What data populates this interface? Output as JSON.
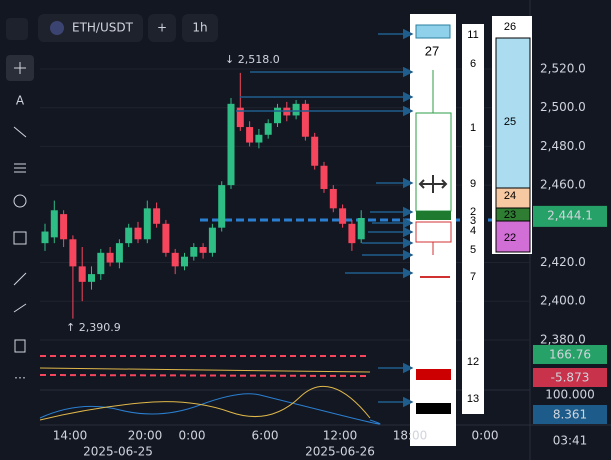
{
  "toolbar": {
    "symbol": "ETH/USDT",
    "add": "+",
    "interval": "1h"
  },
  "tools": {
    "text": "A"
  },
  "price_axis": {
    "ticks": [
      {
        "value": 2520,
        "label": "2,520.0"
      },
      {
        "value": 2500,
        "label": "2,500.0"
      },
      {
        "value": 2480,
        "label": "2,480.0"
      },
      {
        "value": 2460,
        "label": "2,460.0"
      },
      {
        "value": 2420,
        "label": "2,420.0"
      },
      {
        "value": 2400,
        "label": "2,400.0"
      },
      {
        "value": 2380,
        "label": "2,380.0"
      }
    ],
    "current": {
      "value": 2444.1,
      "label": "2,444.1"
    }
  },
  "high_label": "↓ 2,518.0",
  "low_label": "↑ 2,390.9",
  "candles": [
    [
      2430,
      2440,
      2426,
      2436
    ],
    [
      2433,
      2452,
      2430,
      2447
    ],
    [
      2445,
      2447,
      2428,
      2432
    ],
    [
      2432,
      2434,
      2391,
      2418
    ],
    [
      2418,
      2428,
      2400,
      2410
    ],
    [
      2410,
      2418,
      2406,
      2414
    ],
    [
      2414,
      2427,
      2411,
      2425
    ],
    [
      2425,
      2428,
      2418,
      2420
    ],
    [
      2420,
      2432,
      2417,
      2430
    ],
    [
      2430,
      2440,
      2428,
      2438
    ],
    [
      2438,
      2441,
      2430,
      2432
    ],
    [
      2432,
      2452,
      2430,
      2448
    ],
    [
      2448,
      2451,
      2438,
      2440
    ],
    [
      2440,
      2442,
      2423,
      2425
    ],
    [
      2425,
      2427,
      2414,
      2418
    ],
    [
      2418,
      2425,
      2416,
      2423
    ],
    [
      2423,
      2430,
      2421,
      2428
    ],
    [
      2428,
      2430,
      2422,
      2425
    ],
    [
      2425,
      2440,
      2423,
      2438
    ],
    [
      2438,
      2462,
      2436,
      2460
    ],
    [
      2460,
      2505,
      2458,
      2502
    ],
    [
      2500,
      2518,
      2488,
      2490
    ],
    [
      2490,
      2493,
      2480,
      2482
    ],
    [
      2482,
      2489,
      2479,
      2486
    ],
    [
      2486,
      2494,
      2484,
      2492
    ],
    [
      2492,
      2502,
      2490,
      2500
    ],
    [
      2500,
      2503,
      2493,
      2496
    ],
    [
      2496,
      2504,
      2494,
      2502
    ],
    [
      2502,
      2504,
      2483,
      2485
    ],
    [
      2485,
      2487,
      2468,
      2470
    ],
    [
      2470,
      2472,
      2456,
      2458
    ],
    [
      2458,
      2460,
      2446,
      2448
    ],
    [
      2448,
      2450,
      2438,
      2440
    ],
    [
      2440,
      2442,
      2426,
      2430
    ],
    [
      2432,
      2447,
      2430,
      2443
    ]
  ],
  "indicators": {
    "volume": "166.76",
    "macd": "-5.873",
    "rsi_max": "100.000",
    "rsi": "8.361"
  },
  "time_axis": {
    "labels": [
      "14:00",
      "20:00",
      "0:00",
      "6:00",
      "12:00",
      "18:00",
      "0:00"
    ],
    "dates": [
      "2025-06-25",
      "2025-06-26"
    ]
  },
  "clock": "03:41",
  "annotations": {
    "markers": [
      "11",
      "6",
      "1",
      "9",
      "2",
      "3",
      "4",
      "5",
      "7",
      "12",
      "13"
    ],
    "box_title": "27",
    "column_title": "26",
    "segments": [
      "25",
      "24",
      "23",
      "22"
    ]
  }
}
